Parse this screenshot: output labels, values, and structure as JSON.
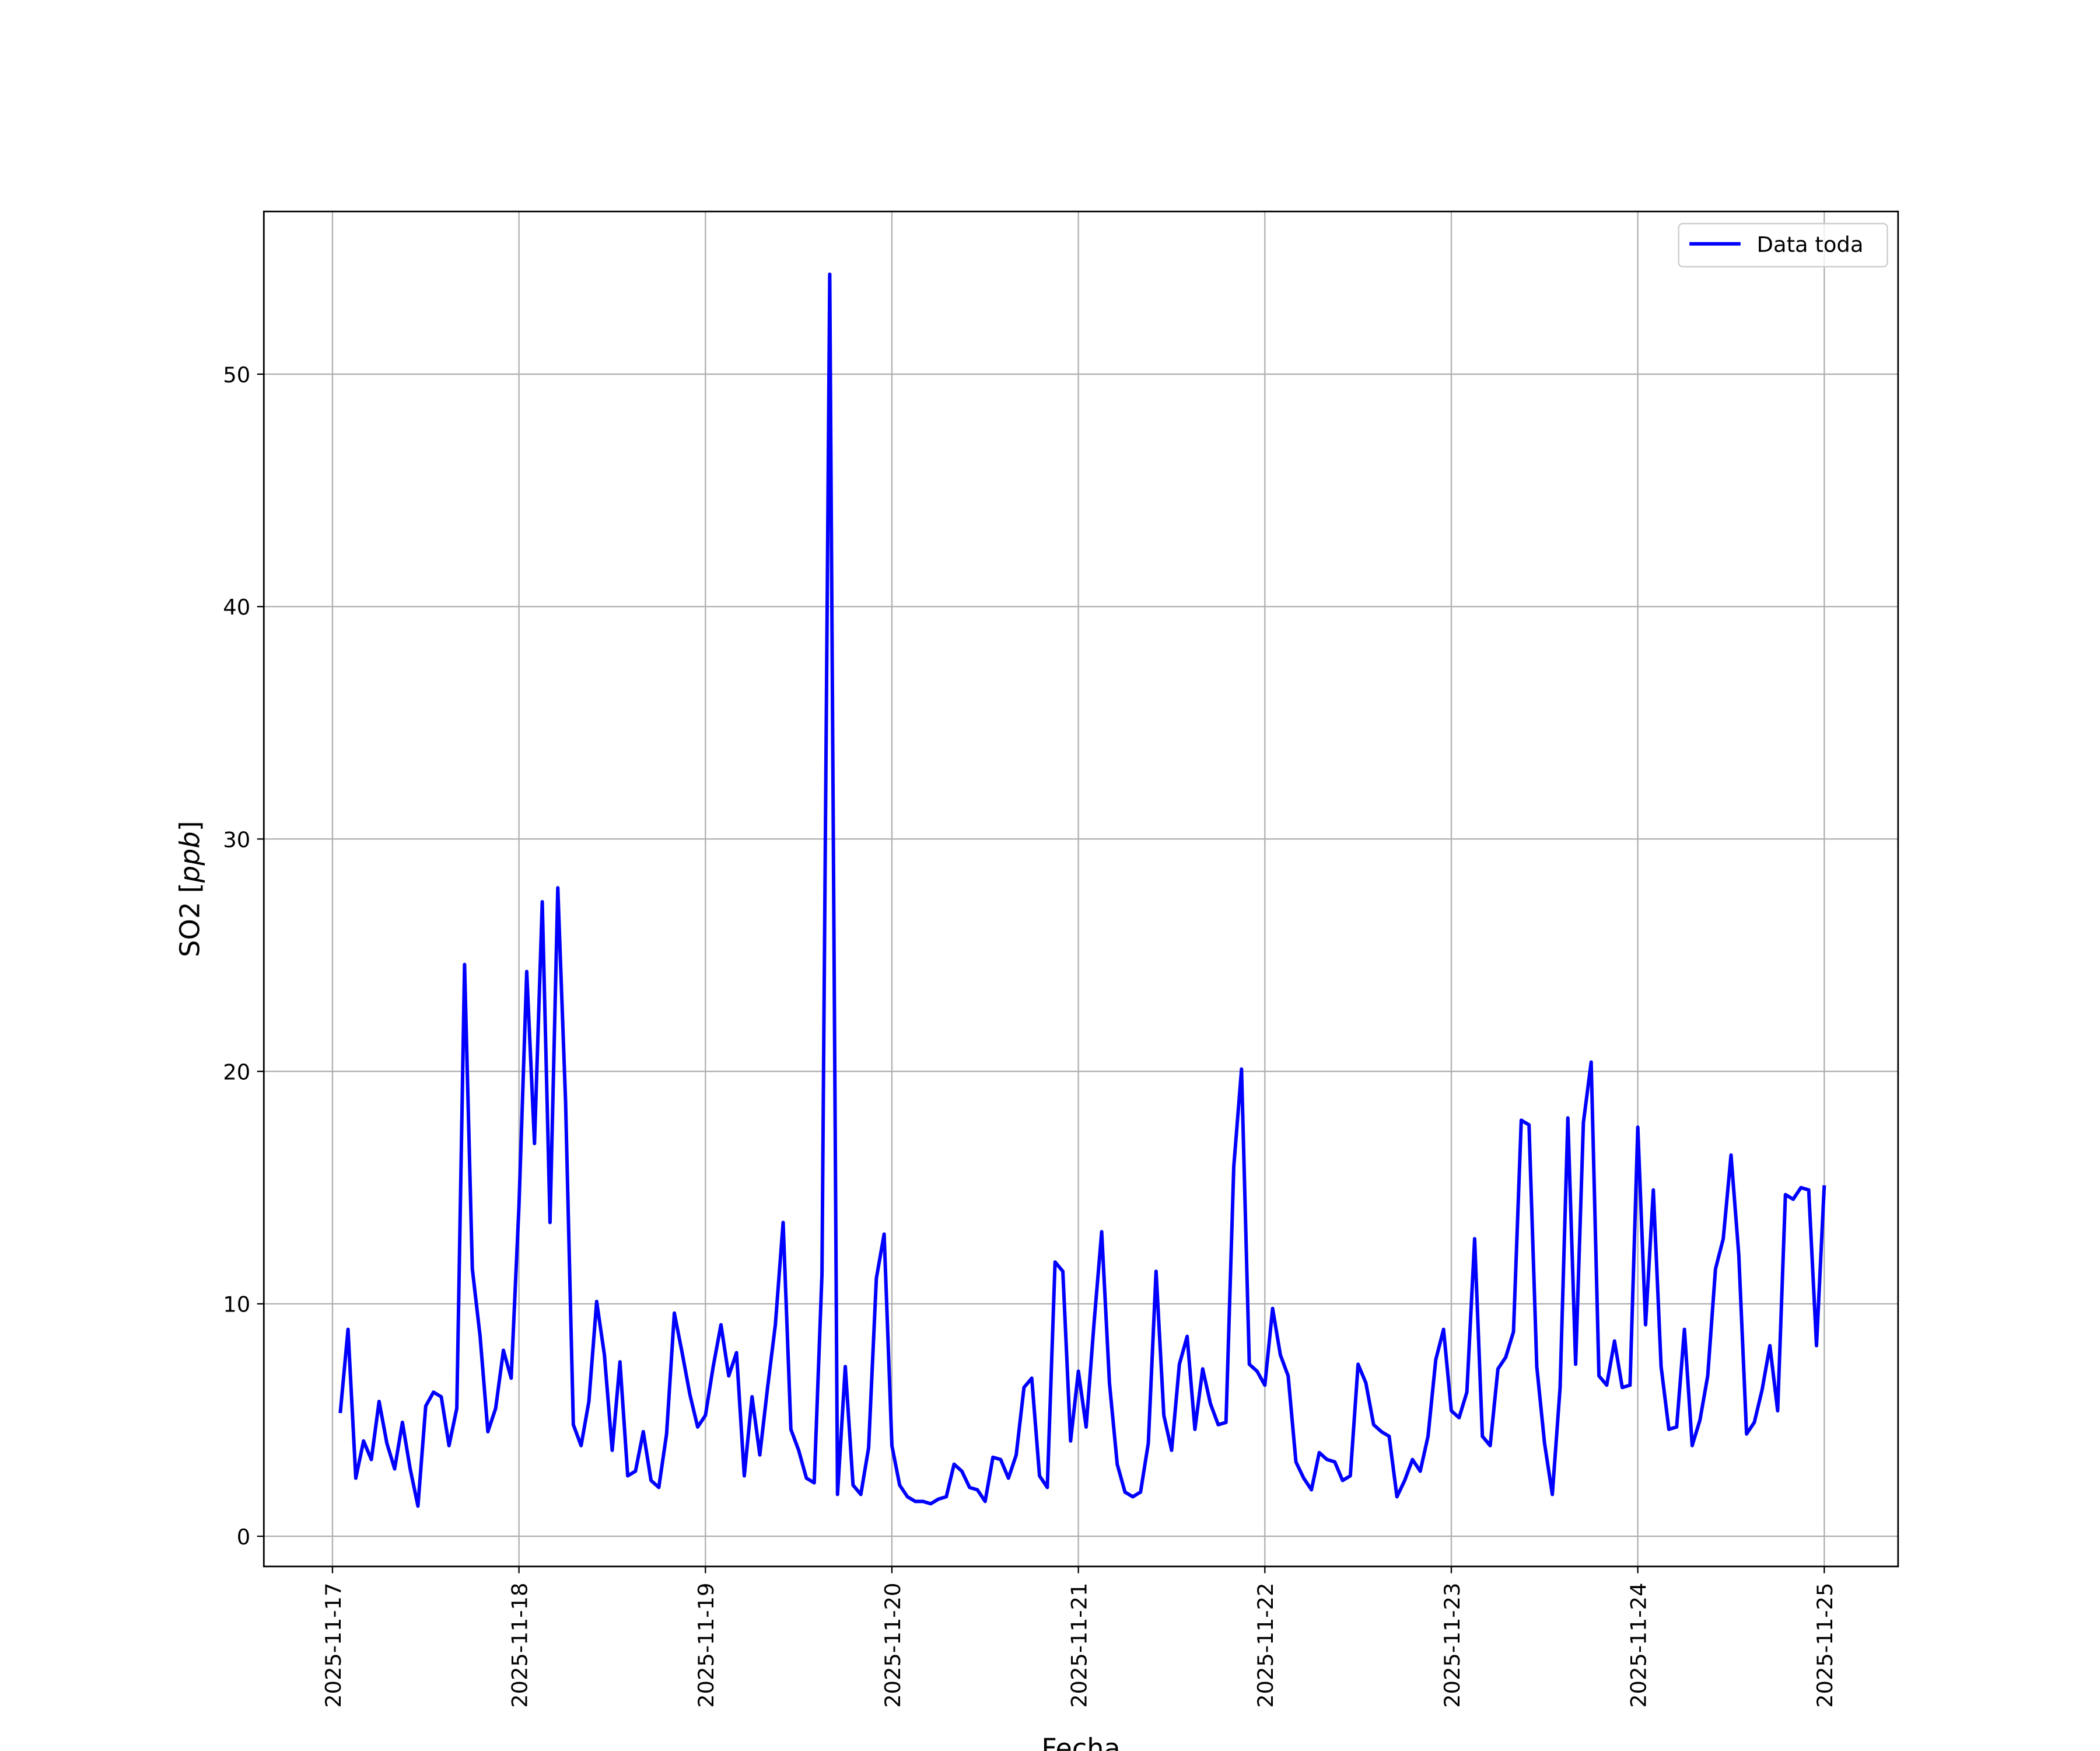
{
  "chart_data": {
    "type": "line",
    "title": "",
    "xlabel": "Fecha",
    "ylabel": "SO2 [ppb]",
    "ylabel_italic_part": "ppb",
    "xlim": [
      "2025-11-16 15:10",
      "2025-11-25 09:30"
    ],
    "ylim": [
      -1.3,
      57.0
    ],
    "grid": true,
    "legend_position": "top-right",
    "x_ticks": [
      "2025-11-17",
      "2025-11-18",
      "2025-11-19",
      "2025-11-20",
      "2025-11-21",
      "2025-11-22",
      "2025-11-23",
      "2025-11-24",
      "2025-11-25"
    ],
    "y_ticks": [
      0,
      10,
      20,
      30,
      40,
      50
    ],
    "series": [
      {
        "name": "Data toda",
        "color": "#0000ff",
        "x": [
          "2025-11-17 01:00",
          "2025-11-17 02:00",
          "2025-11-17 03:00",
          "2025-11-17 04:00",
          "2025-11-17 05:00",
          "2025-11-17 06:00",
          "2025-11-17 07:00",
          "2025-11-17 08:00",
          "2025-11-17 09:00",
          "2025-11-17 10:00",
          "2025-11-17 11:00",
          "2025-11-17 12:00",
          "2025-11-17 13:00",
          "2025-11-17 14:00",
          "2025-11-17 15:00",
          "2025-11-17 16:00",
          "2025-11-17 17:00",
          "2025-11-17 18:00",
          "2025-11-17 19:00",
          "2025-11-17 20:00",
          "2025-11-17 21:00",
          "2025-11-17 22:00",
          "2025-11-17 23:00",
          "2025-11-18 00:00",
          "2025-11-18 01:00",
          "2025-11-18 02:00",
          "2025-11-18 03:00",
          "2025-11-18 04:00",
          "2025-11-18 05:00",
          "2025-11-18 06:00",
          "2025-11-18 07:00",
          "2025-11-18 08:00",
          "2025-11-18 09:00",
          "2025-11-18 10:00",
          "2025-11-18 11:00",
          "2025-11-18 12:00",
          "2025-11-18 13:00",
          "2025-11-18 14:00",
          "2025-11-18 15:00",
          "2025-11-18 16:00",
          "2025-11-18 17:00",
          "2025-11-18 18:00",
          "2025-11-18 19:00",
          "2025-11-18 20:00",
          "2025-11-18 21:00",
          "2025-11-18 22:00",
          "2025-11-18 23:00",
          "2025-11-19 00:00",
          "2025-11-19 01:00",
          "2025-11-19 02:00",
          "2025-11-19 03:00",
          "2025-11-19 04:00",
          "2025-11-19 05:00",
          "2025-11-19 06:00",
          "2025-11-19 07:00",
          "2025-11-19 08:00",
          "2025-11-19 09:00",
          "2025-11-19 10:00",
          "2025-11-19 11:00",
          "2025-11-19 12:00",
          "2025-11-19 13:00",
          "2025-11-19 14:00",
          "2025-11-19 15:00",
          "2025-11-19 16:00",
          "2025-11-19 17:00",
          "2025-11-19 18:00",
          "2025-11-19 19:00",
          "2025-11-19 20:00",
          "2025-11-19 21:00",
          "2025-11-19 22:00",
          "2025-11-19 23:00",
          "2025-11-20 00:00",
          "2025-11-20 01:00",
          "2025-11-20 02:00",
          "2025-11-20 03:00",
          "2025-11-20 04:00",
          "2025-11-20 05:00",
          "2025-11-20 06:00",
          "2025-11-20 07:00",
          "2025-11-20 08:00",
          "2025-11-20 09:00",
          "2025-11-20 10:00",
          "2025-11-20 11:00",
          "2025-11-20 12:00",
          "2025-11-20 13:00",
          "2025-11-20 14:00",
          "2025-11-20 15:00",
          "2025-11-20 16:00",
          "2025-11-20 17:00",
          "2025-11-20 18:00",
          "2025-11-20 19:00",
          "2025-11-20 20:00",
          "2025-11-20 21:00",
          "2025-11-20 22:00",
          "2025-11-20 23:00",
          "2025-11-21 00:00",
          "2025-11-21 01:00",
          "2025-11-21 02:00",
          "2025-11-21 03:00",
          "2025-11-21 04:00",
          "2025-11-21 05:00",
          "2025-11-21 06:00",
          "2025-11-21 07:00",
          "2025-11-21 08:00",
          "2025-11-21 09:00",
          "2025-11-21 10:00",
          "2025-11-21 11:00",
          "2025-11-21 12:00",
          "2025-11-21 13:00",
          "2025-11-21 14:00",
          "2025-11-21 15:00",
          "2025-11-21 16:00",
          "2025-11-21 17:00",
          "2025-11-21 18:00",
          "2025-11-21 19:00",
          "2025-11-21 20:00",
          "2025-11-21 21:00",
          "2025-11-21 22:00",
          "2025-11-21 23:00",
          "2025-11-22 00:00",
          "2025-11-22 01:00",
          "2025-11-22 02:00",
          "2025-11-22 03:00",
          "2025-11-22 04:00",
          "2025-11-22 05:00",
          "2025-11-22 06:00",
          "2025-11-22 07:00",
          "2025-11-22 08:00",
          "2025-11-22 09:00",
          "2025-11-22 10:00",
          "2025-11-22 11:00",
          "2025-11-22 12:00",
          "2025-11-22 13:00",
          "2025-11-22 14:00",
          "2025-11-22 15:00",
          "2025-11-22 16:00",
          "2025-11-22 17:00",
          "2025-11-22 18:00",
          "2025-11-22 19:00",
          "2025-11-22 20:00",
          "2025-11-22 21:00",
          "2025-11-22 22:00",
          "2025-11-22 23:00",
          "2025-11-23 00:00",
          "2025-11-23 01:00",
          "2025-11-23 02:00",
          "2025-11-23 03:00",
          "2025-11-23 04:00",
          "2025-11-23 05:00",
          "2025-11-23 06:00",
          "2025-11-23 07:00",
          "2025-11-23 08:00",
          "2025-11-23 09:00",
          "2025-11-23 10:00",
          "2025-11-23 11:00",
          "2025-11-23 12:00",
          "2025-11-23 13:00",
          "2025-11-23 14:00",
          "2025-11-23 15:00",
          "2025-11-23 16:00",
          "2025-11-23 17:00",
          "2025-11-23 18:00",
          "2025-11-23 19:00",
          "2025-11-23 20:00",
          "2025-11-23 21:00",
          "2025-11-23 22:00",
          "2025-11-23 23:00",
          "2025-11-24 00:00",
          "2025-11-24 01:00",
          "2025-11-24 02:00",
          "2025-11-24 03:00",
          "2025-11-24 04:00",
          "2025-11-24 05:00",
          "2025-11-24 06:00",
          "2025-11-24 07:00",
          "2025-11-24 08:00",
          "2025-11-24 09:00",
          "2025-11-24 10:00",
          "2025-11-24 11:00",
          "2025-11-24 12:00",
          "2025-11-24 13:00",
          "2025-11-24 14:00",
          "2025-11-24 15:00",
          "2025-11-24 16:00",
          "2025-11-24 17:00",
          "2025-11-24 18:00",
          "2025-11-24 19:00",
          "2025-11-24 20:00",
          "2025-11-24 21:00",
          "2025-11-24 22:00",
          "2025-11-24 23:00",
          "2025-11-25 00:00"
        ],
        "y": [
          5.3,
          8.9,
          2.5,
          4.1,
          3.3,
          5.8,
          4.0,
          2.9,
          4.9,
          2.9,
          1.3,
          5.6,
          6.2,
          6.0,
          3.9,
          5.5,
          24.6,
          11.5,
          8.6,
          4.5,
          5.5,
          8.0,
          6.8,
          14.2,
          24.3,
          16.9,
          27.3,
          13.5,
          27.9,
          18.7,
          4.8,
          3.9,
          5.8,
          10.1,
          7.8,
          3.7,
          7.5,
          2.6,
          2.8,
          4.5,
          2.4,
          2.1,
          4.4,
          9.6,
          7.9,
          6.1,
          4.7,
          5.2,
          7.3,
          9.1,
          6.9,
          7.9,
          2.6,
          6.0,
          3.5,
          6.4,
          9.1,
          13.5,
          4.6,
          3.7,
          2.5,
          2.3,
          11.3,
          54.3,
          1.8,
          7.3,
          2.2,
          1.8,
          3.8,
          11.1,
          13.0,
          3.9,
          2.2,
          1.7,
          1.5,
          1.5,
          1.4,
          1.6,
          1.7,
          3.1,
          2.8,
          2.1,
          2.0,
          1.5,
          3.4,
          3.3,
          2.5,
          3.5,
          6.4,
          6.8,
          2.6,
          2.1,
          11.8,
          11.4,
          4.1,
          7.1,
          4.7,
          9.1,
          13.1,
          6.6,
          3.1,
          1.9,
          1.7,
          1.9,
          4.0,
          11.4,
          5.2,
          3.7,
          7.4,
          8.6,
          4.6,
          7.2,
          5.7,
          4.8,
          4.9,
          15.9,
          20.1,
          7.4,
          7.1,
          6.5,
          9.8,
          7.8,
          6.9,
          3.2,
          2.5,
          2.0,
          3.6,
          3.3,
          3.2,
          2.4,
          2.6,
          7.4,
          6.6,
          4.8,
          4.5,
          4.3,
          1.7,
          2.4,
          3.3,
          2.8,
          4.3,
          7.6,
          8.9,
          5.4,
          5.1,
          6.2,
          12.8,
          4.3,
          3.9,
          7.2,
          7.7,
          8.8,
          17.9,
          17.7,
          7.3,
          4.0,
          1.8,
          6.4,
          18.0,
          7.4,
          17.8,
          20.4,
          6.9,
          6.5,
          8.4,
          6.4,
          6.5,
          17.6,
          9.1,
          14.9,
          7.3,
          4.6,
          4.7,
          8.9,
          3.9,
          5.0,
          6.9,
          11.5,
          12.8,
          16.4,
          12.1,
          4.4,
          4.9,
          6.3,
          8.2,
          5.4,
          14.7,
          14.5,
          15.0,
          14.9,
          8.2,
          15.1
        ]
      }
    ]
  }
}
